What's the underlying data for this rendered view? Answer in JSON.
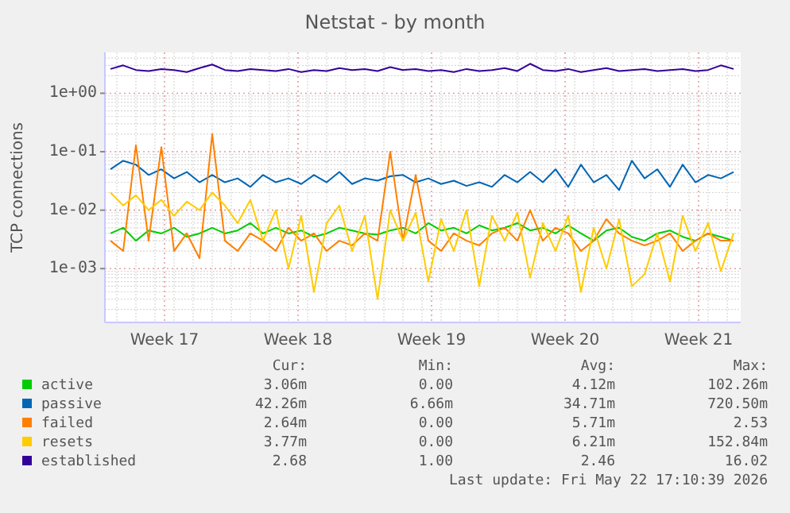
{
  "chart_data": {
    "type": "line",
    "title": "Netstat - by month",
    "ylabel": "TCP connections",
    "log": "y",
    "grid": true,
    "legend": "bottom",
    "marker": "none",
    "line_style": "solid",
    "xlim": [
      "2026-04-19T09:00",
      "2026-05-22T17:00"
    ],
    "xticks": [
      {
        "value": "2026-04-22T12:00",
        "label": "Week 17"
      },
      {
        "value": "2026-04-29T12:00",
        "label": "Week 18"
      },
      {
        "value": "2026-05-06T12:00",
        "label": "Week 19"
      },
      {
        "value": "2026-05-13T12:00",
        "label": "Week 20"
      },
      {
        "value": "2026-05-20T12:00",
        "label": "Week 21"
      }
    ],
    "ylim": [
      0.00012,
      5
    ],
    "yticks": [
      {
        "value": 0.001,
        "label": "1e-03"
      },
      {
        "value": 0.01,
        "label": "1e-02"
      },
      {
        "value": 0.1,
        "label": "1e-01"
      },
      {
        "value": 1,
        "label": "1e+00"
      }
    ],
    "x": [
      "2026-04-19T16:00",
      "2026-04-20T08:00",
      "2026-04-21T00:00",
      "2026-04-21T16:00",
      "2026-04-22T08:00",
      "2026-04-23T00:00",
      "2026-04-23T16:00",
      "2026-04-24T08:00",
      "2026-04-25T00:00",
      "2026-04-25T16:00",
      "2026-04-26T08:00",
      "2026-04-27T00:00",
      "2026-04-27T16:00",
      "2026-04-28T08:00",
      "2026-04-29T00:00",
      "2026-04-29T16:00",
      "2026-04-30T08:00",
      "2026-05-01T00:00",
      "2026-05-01T16:00",
      "2026-05-02T08:00",
      "2026-05-03T00:00",
      "2026-05-03T16:00",
      "2026-05-04T08:00",
      "2026-05-05T00:00",
      "2026-05-05T16:00",
      "2026-05-06T08:00",
      "2026-05-07T00:00",
      "2026-05-07T16:00",
      "2026-05-08T08:00",
      "2026-05-09T00:00",
      "2026-05-09T16:00",
      "2026-05-10T08:00",
      "2026-05-11T00:00",
      "2026-05-11T16:00",
      "2026-05-12T08:00",
      "2026-05-13T00:00",
      "2026-05-13T16:00",
      "2026-05-14T08:00",
      "2026-05-15T00:00",
      "2026-05-15T16:00",
      "2026-05-16T08:00",
      "2026-05-17T00:00",
      "2026-05-17T16:00",
      "2026-05-18T08:00",
      "2026-05-19T00:00",
      "2026-05-19T16:00",
      "2026-05-20T08:00",
      "2026-05-21T00:00",
      "2026-05-21T16:00",
      "2026-05-22T08:00"
    ],
    "series": [
      {
        "name": "active",
        "color": "#00cc00",
        "values": [
          0.004,
          0.005,
          0.003,
          0.0045,
          0.004,
          0.005,
          0.0035,
          0.004,
          0.005,
          0.004,
          0.0045,
          0.006,
          0.004,
          0.005,
          0.004,
          0.0045,
          0.0035,
          0.004,
          0.005,
          0.0045,
          0.004,
          0.0038,
          0.0045,
          0.005,
          0.004,
          0.006,
          0.0045,
          0.005,
          0.004,
          0.0055,
          0.0045,
          0.005,
          0.006,
          0.0045,
          0.005,
          0.004,
          0.0055,
          0.004,
          0.003,
          0.0045,
          0.005,
          0.0035,
          0.003,
          0.004,
          0.0045,
          0.0035,
          0.003,
          0.004,
          0.0035,
          0.003
        ]
      },
      {
        "name": "passive",
        "color": "#0066b3",
        "values": [
          0.05,
          0.07,
          0.06,
          0.04,
          0.05,
          0.035,
          0.045,
          0.03,
          0.04,
          0.03,
          0.035,
          0.025,
          0.04,
          0.03,
          0.035,
          0.028,
          0.04,
          0.03,
          0.045,
          0.028,
          0.035,
          0.032,
          0.038,
          0.04,
          0.03,
          0.035,
          0.028,
          0.032,
          0.026,
          0.03,
          0.025,
          0.04,
          0.03,
          0.045,
          0.03,
          0.05,
          0.025,
          0.06,
          0.03,
          0.04,
          0.022,
          0.07,
          0.035,
          0.05,
          0.025,
          0.06,
          0.03,
          0.04,
          0.035,
          0.045
        ]
      },
      {
        "name": "failed",
        "color": "#ff8000",
        "values": [
          0.003,
          0.002,
          0.13,
          0.003,
          0.12,
          0.002,
          0.004,
          0.0015,
          0.2,
          0.003,
          0.002,
          0.004,
          0.003,
          0.002,
          0.005,
          0.003,
          0.004,
          0.002,
          0.003,
          0.0025,
          0.004,
          0.003,
          0.1,
          0.003,
          0.04,
          0.003,
          0.002,
          0.004,
          0.003,
          0.0025,
          0.004,
          0.005,
          0.003,
          0.01,
          0.003,
          0.005,
          0.004,
          0.002,
          0.003,
          0.007,
          0.004,
          0.003,
          0.0025,
          0.003,
          0.004,
          0.002,
          0.003,
          0.004,
          0.003,
          0.003
        ]
      },
      {
        "name": "resets",
        "color": "#ffcc00",
        "values": [
          0.02,
          0.012,
          0.018,
          0.01,
          0.015,
          0.008,
          0.014,
          0.01,
          0.02,
          0.012,
          0.006,
          0.015,
          0.003,
          0.01,
          0.001,
          0.008,
          0.0004,
          0.006,
          0.012,
          0.002,
          0.008,
          0.0003,
          0.01,
          0.003,
          0.009,
          0.0006,
          0.007,
          0.002,
          0.01,
          0.0005,
          0.008,
          0.003,
          0.009,
          0.0007,
          0.006,
          0.002,
          0.008,
          0.0004,
          0.005,
          0.001,
          0.007,
          0.0005,
          0.0008,
          0.004,
          0.0006,
          0.008,
          0.002,
          0.006,
          0.0009,
          0.004
        ]
      },
      {
        "name": "established",
        "color": "#330099",
        "values": [
          2.6,
          3.0,
          2.5,
          2.4,
          2.6,
          2.5,
          2.3,
          2.7,
          3.1,
          2.5,
          2.4,
          2.6,
          2.5,
          2.4,
          2.6,
          2.3,
          2.5,
          2.4,
          2.7,
          2.5,
          2.6,
          2.4,
          2.8,
          2.5,
          2.6,
          2.4,
          2.5,
          2.3,
          2.6,
          2.4,
          2.5,
          2.7,
          2.4,
          3.2,
          2.5,
          2.4,
          2.6,
          2.3,
          2.5,
          2.7,
          2.4,
          2.5,
          2.6,
          2.4,
          2.5,
          2.6,
          2.4,
          2.5,
          3.0,
          2.6
        ]
      }
    ],
    "annotations": [
      "Cur:",
      "Min:",
      "Avg:",
      "Max:",
      "3.06m",
      "0.00",
      "4.12m",
      "102.26m",
      "42.26m",
      "6.66m",
      "34.71m",
      "720.50m",
      "2.64m",
      "0.00",
      "5.71m",
      "2.53",
      "3.77m",
      "0.00",
      "6.21m",
      "152.84m",
      "2.68",
      "1.00",
      "2.46",
      "16.02",
      "Last update: Fri May 22 17:10:39 2026"
    ]
  }
}
